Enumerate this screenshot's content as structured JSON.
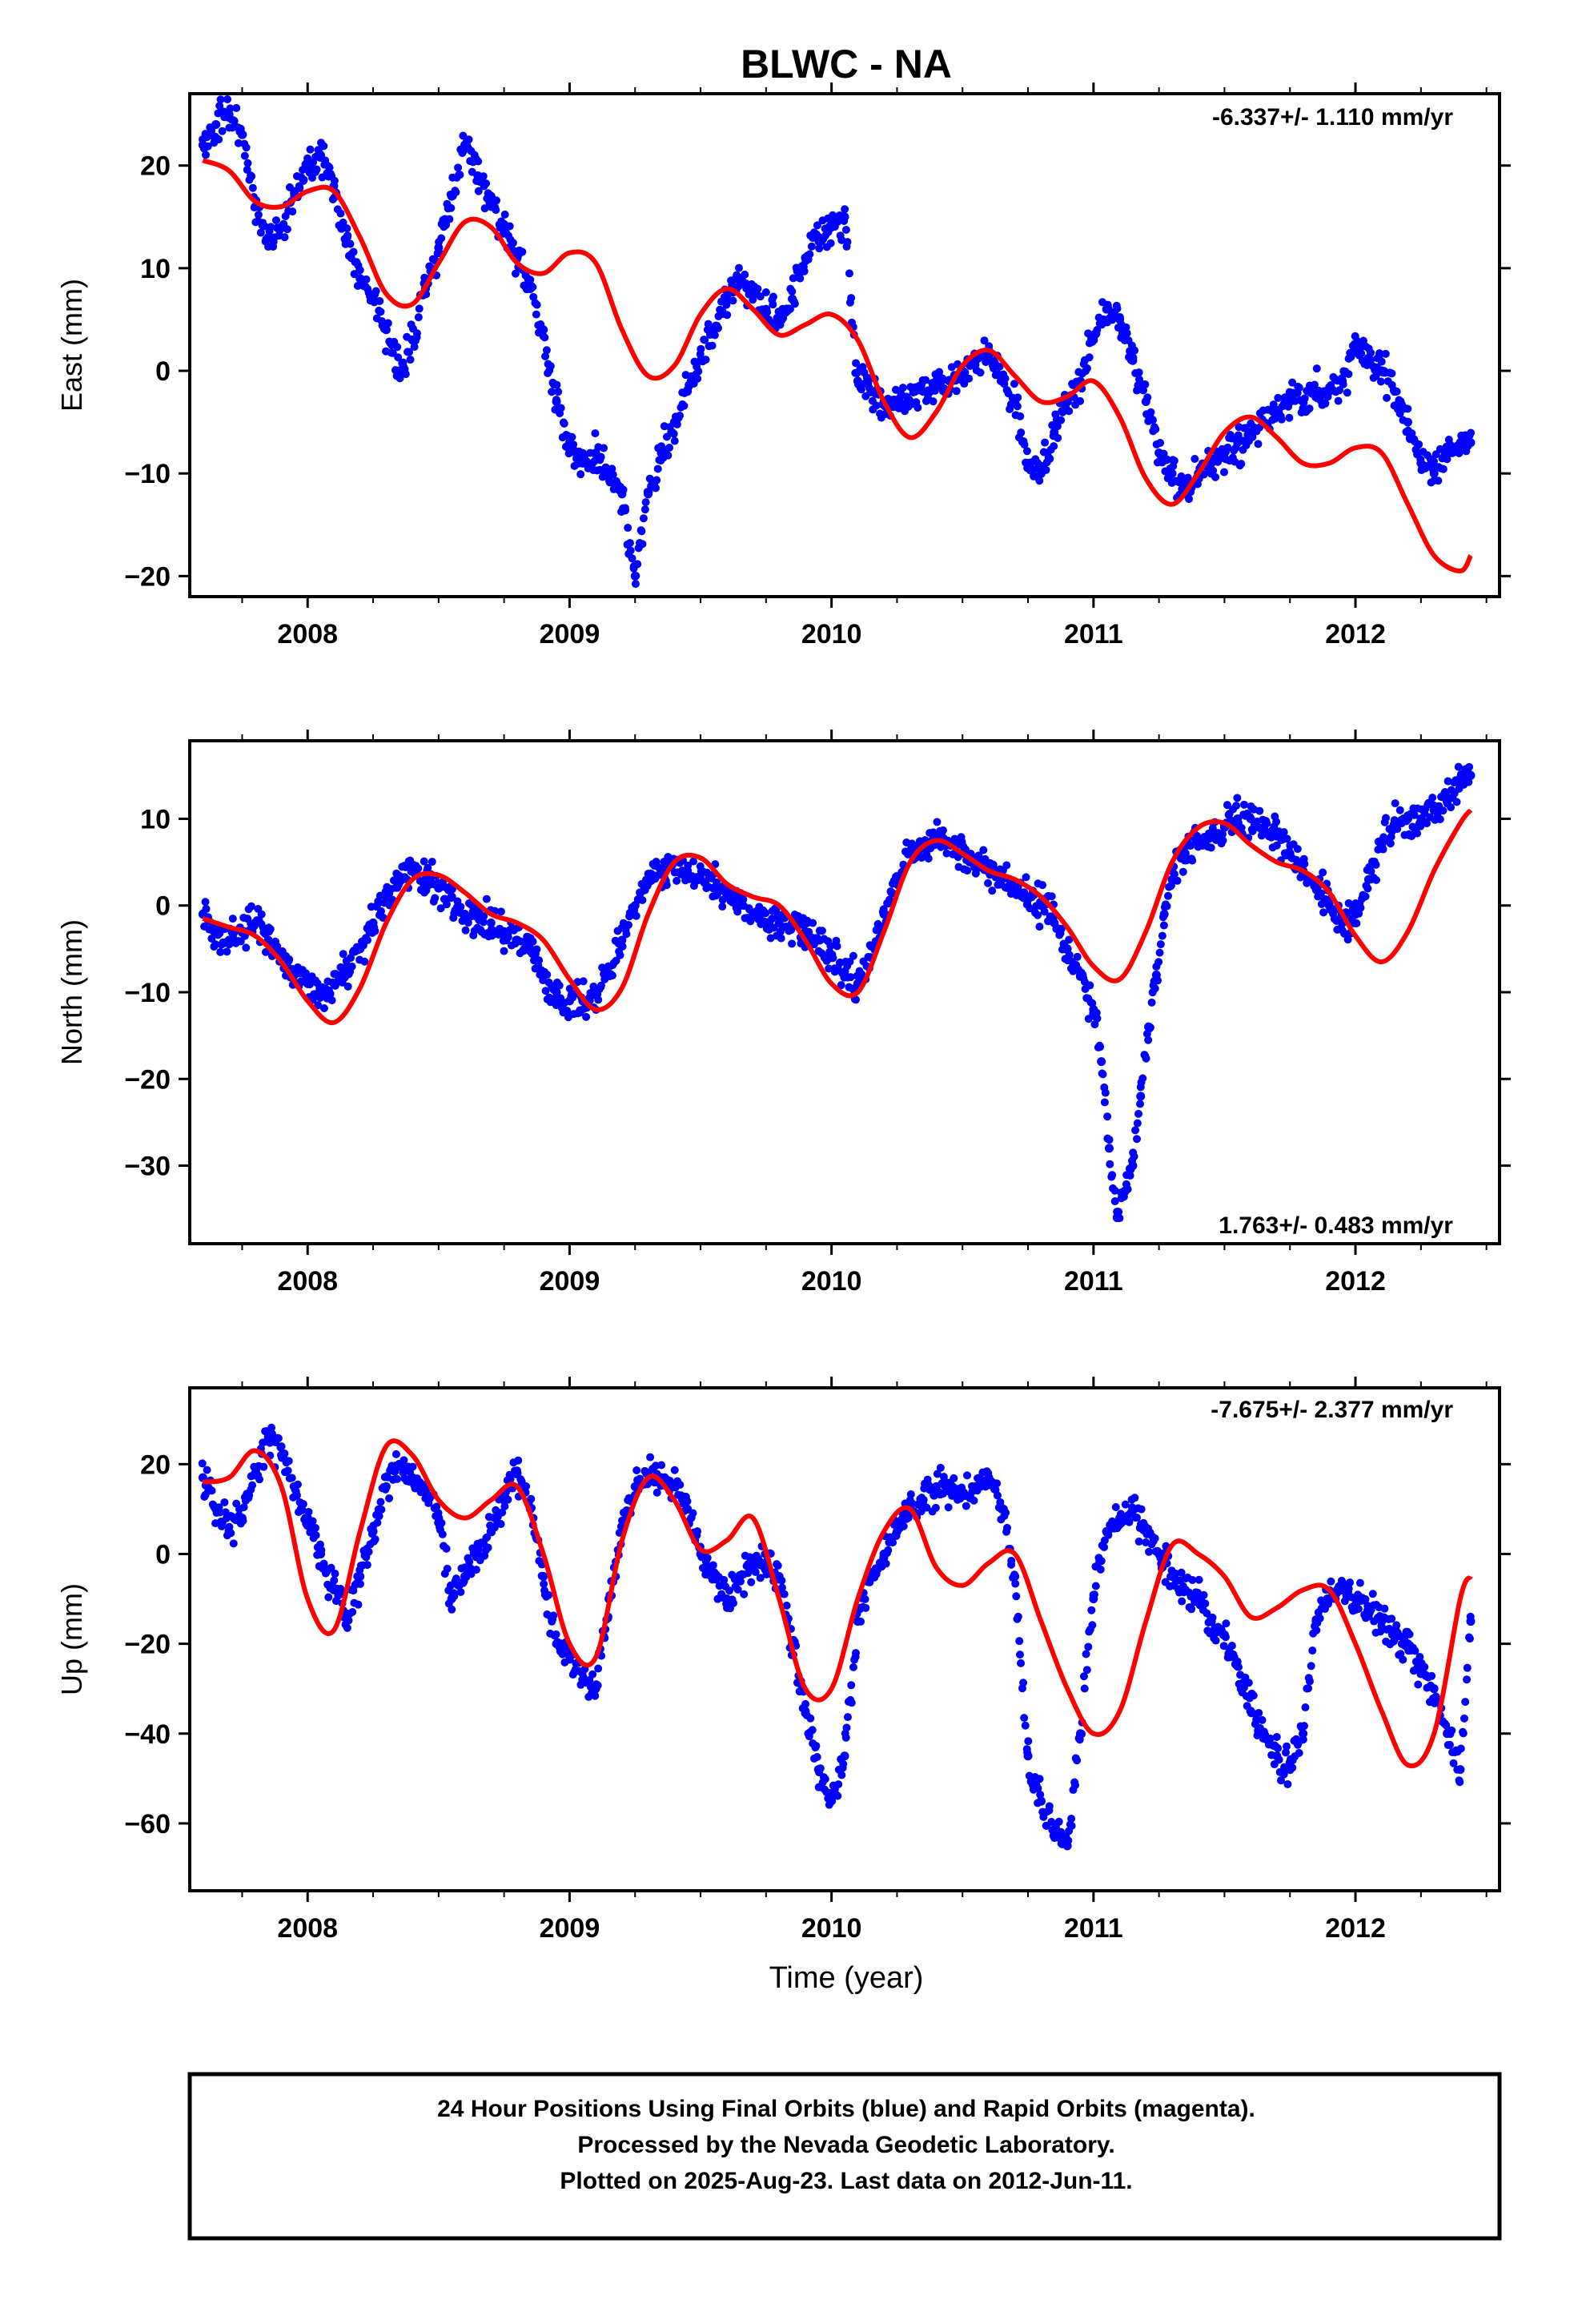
{
  "title": "BLWC - NA",
  "xlabel": "Time (year)",
  "caption": {
    "line1": "24 Hour Positions Using Final Orbits (blue) and Rapid Orbits (magenta).",
    "line2": "Processed by the Nevada Geodetic Laboratory.",
    "line3": "Plotted on 2025-Aug-23. Last data on 2012-Jun-11."
  },
  "colors": {
    "final_orbits": "#0000ff",
    "model": "#ff0000",
    "axis": "#000000"
  },
  "chart_data": [
    {
      "type": "scatter",
      "component": "east",
      "ylabel": "East (mm)",
      "rate_text": "-6.337+/- 1.110 mm/yr",
      "xlim": [
        2007.55,
        2012.55
      ],
      "ylim": [
        -22,
        27
      ],
      "xticks": [
        2008,
        2009,
        2010,
        2011,
        2012
      ],
      "yticks": [
        -20,
        -10,
        0,
        10,
        20
      ],
      "series": [
        {
          "kind": "points",
          "x": [
            2007.6,
            2007.65,
            2007.7,
            2007.75,
            2007.8,
            2007.85,
            2007.9,
            2007.95,
            2008.0,
            2008.05,
            2008.1,
            2008.15,
            2008.2,
            2008.25,
            2008.3,
            2008.35,
            2008.4,
            2008.45,
            2008.5,
            2008.55,
            2008.6,
            2008.65,
            2008.7,
            2008.75,
            2008.8,
            2008.85,
            2008.9,
            2008.95,
            2009.0,
            2009.05,
            2009.1,
            2009.15,
            2009.2,
            2009.25,
            2009.3,
            2009.35,
            2009.4,
            2009.45,
            2009.5,
            2009.55,
            2009.6,
            2009.65,
            2009.7,
            2009.75,
            2009.8,
            2009.85,
            2009.9,
            2009.95,
            2010.0,
            2010.05,
            2010.1,
            2010.15,
            2010.2,
            2010.25,
            2010.3,
            2010.35,
            2010.4,
            2010.45,
            2010.5,
            2010.55,
            2010.6,
            2010.65,
            2010.7,
            2010.75,
            2010.8,
            2010.85,
            2010.9,
            2010.95,
            2011.0,
            2011.05,
            2011.1,
            2011.15,
            2011.2,
            2011.25,
            2011.3,
            2011.35,
            2011.4,
            2011.45,
            2011.5,
            2011.55,
            2011.6,
            2011.65,
            2011.7,
            2011.75,
            2011.8,
            2011.85,
            2011.9,
            2011.95,
            2012.0,
            2012.05,
            2012.1,
            2012.15,
            2012.2,
            2012.25,
            2012.3,
            2012.35,
            2012.4,
            2012.44
          ],
          "y": [
            22,
            24,
            25,
            23,
            16,
            13,
            14,
            17,
            20,
            21,
            18,
            13,
            9,
            7,
            4,
            0,
            3,
            8,
            12,
            17,
            22,
            19,
            17,
            14,
            11,
            8,
            4,
            -3,
            -7,
            -9,
            -8,
            -10,
            -12,
            -20,
            -12,
            -8,
            -5,
            -2,
            1,
            4,
            7,
            9,
            8,
            6,
            5,
            7,
            11,
            13,
            14,
            15,
            -1,
            -2,
            -3,
            -3,
            -3,
            -2,
            -1,
            -1,
            0,
            1,
            2,
            -1,
            -3,
            -9,
            -10,
            -6,
            -3,
            -1,
            3,
            6,
            5,
            1,
            -3,
            -8,
            -10,
            -12,
            -10,
            -9,
            -8,
            -7,
            -6,
            -5,
            -4,
            -3,
            -3,
            -2,
            -2,
            -1,
            2,
            1,
            0,
            -2,
            -5,
            -9,
            -10,
            -8,
            -7,
            -7
          ]
        },
        {
          "kind": "model",
          "x": [
            2007.6,
            2007.7,
            2007.8,
            2007.9,
            2008.0,
            2008.1,
            2008.2,
            2008.3,
            2008.4,
            2008.5,
            2008.6,
            2008.7,
            2008.8,
            2008.9,
            2009.0,
            2009.1,
            2009.2,
            2009.3,
            2009.4,
            2009.5,
            2009.6,
            2009.7,
            2009.8,
            2009.9,
            2010.0,
            2010.1,
            2010.2,
            2010.3,
            2010.4,
            2010.5,
            2010.6,
            2010.7,
            2010.8,
            2010.9,
            2011.0,
            2011.1,
            2011.2,
            2011.3,
            2011.4,
            2011.5,
            2011.6,
            2011.7,
            2011.8,
            2011.9,
            2012.0,
            2012.1,
            2012.2,
            2012.3,
            2012.4,
            2012.44
          ],
          "y": [
            20.5,
            19.5,
            16.5,
            16,
            17.5,
            17.5,
            13,
            7.5,
            6.5,
            10.5,
            14.5,
            14,
            10.5,
            9.5,
            11.5,
            10.5,
            4,
            -0.5,
            0.5,
            5.5,
            8,
            6,
            3.5,
            4.5,
            5.5,
            3,
            -3,
            -6.5,
            -4,
            0.5,
            2,
            -0.5,
            -3,
            -2.5,
            -1,
            -4.5,
            -10.5,
            -13,
            -10,
            -6,
            -4.5,
            -6.5,
            -9,
            -9,
            -7.5,
            -8,
            -13,
            -18,
            -19.5,
            -18
          ]
        }
      ]
    },
    {
      "type": "scatter",
      "component": "north",
      "ylabel": "North (mm)",
      "rate_text": "1.763+/- 0.483 mm/yr",
      "xlim": [
        2007.55,
        2012.55
      ],
      "ylim": [
        -39,
        19
      ],
      "xticks": [
        2008,
        2009,
        2010,
        2011,
        2012
      ],
      "yticks": [
        -30,
        -20,
        -10,
        0,
        10
      ],
      "series": [
        {
          "kind": "points",
          "x": [
            2007.6,
            2007.65,
            2007.7,
            2007.75,
            2007.8,
            2007.85,
            2007.9,
            2007.95,
            2008.0,
            2008.05,
            2008.1,
            2008.15,
            2008.2,
            2008.25,
            2008.3,
            2008.35,
            2008.4,
            2008.45,
            2008.5,
            2008.55,
            2008.6,
            2008.65,
            2008.7,
            2008.75,
            2008.8,
            2008.85,
            2008.9,
            2008.95,
            2009.0,
            2009.05,
            2009.1,
            2009.15,
            2009.2,
            2009.25,
            2009.3,
            2009.35,
            2009.4,
            2009.45,
            2009.5,
            2009.55,
            2009.6,
            2009.65,
            2009.7,
            2009.75,
            2009.8,
            2009.85,
            2009.9,
            2009.95,
            2010.0,
            2010.05,
            2010.1,
            2010.15,
            2010.2,
            2010.25,
            2010.3,
            2010.35,
            2010.4,
            2010.45,
            2010.5,
            2010.55,
            2010.6,
            2010.65,
            2010.7,
            2010.75,
            2010.8,
            2010.85,
            2010.9,
            2010.95,
            2011.0,
            2011.03,
            2011.06,
            2011.09,
            2011.12,
            2011.15,
            2011.18,
            2011.21,
            2011.24,
            2011.27,
            2011.3,
            2011.35,
            2011.4,
            2011.45,
            2011.5,
            2011.55,
            2011.6,
            2011.65,
            2011.7,
            2011.75,
            2011.8,
            2011.85,
            2011.9,
            2011.95,
            2012.0,
            2012.05,
            2012.1,
            2012.15,
            2012.2,
            2012.25,
            2012.3,
            2012.35,
            2012.4,
            2012.44
          ],
          "y": [
            -1,
            -3,
            -4,
            -3,
            -2,
            -4,
            -6,
            -8,
            -9,
            -10,
            -9,
            -7,
            -5,
            -2,
            1,
            3,
            4,
            3,
            2,
            1,
            -1,
            -1,
            -2,
            -3,
            -4,
            -5,
            -8,
            -10,
            -11,
            -11,
            -10,
            -8,
            -4,
            0,
            3,
            4,
            5,
            4,
            3,
            2,
            1,
            0,
            -1,
            -2,
            -2,
            -2,
            -3,
            -4,
            -6,
            -8,
            -9,
            -6,
            -1,
            3,
            6,
            7,
            8,
            7,
            6,
            5,
            4,
            3,
            2,
            1,
            0,
            -2,
            -5,
            -8,
            -12,
            -18,
            -28,
            -36,
            -33,
            -30,
            -22,
            -14,
            -8,
            -1,
            3,
            6,
            7,
            8,
            9,
            10,
            10,
            9,
            8,
            6,
            4,
            2,
            0,
            -2,
            -1,
            3,
            7,
            9,
            10,
            10,
            11,
            12,
            14,
            15
          ]
        },
        {
          "kind": "model",
          "x": [
            2007.6,
            2007.7,
            2007.8,
            2007.9,
            2008.0,
            2008.1,
            2008.2,
            2008.3,
            2008.4,
            2008.5,
            2008.6,
            2008.7,
            2008.8,
            2008.9,
            2009.0,
            2009.1,
            2009.2,
            2009.3,
            2009.4,
            2009.5,
            2009.6,
            2009.7,
            2009.8,
            2009.9,
            2010.0,
            2010.1,
            2010.2,
            2010.3,
            2010.4,
            2010.5,
            2010.6,
            2010.7,
            2010.8,
            2010.9,
            2011.0,
            2011.1,
            2011.2,
            2011.3,
            2011.4,
            2011.5,
            2011.6,
            2011.7,
            2011.8,
            2011.9,
            2012.0,
            2012.1,
            2012.2,
            2012.3,
            2012.4,
            2012.44
          ],
          "y": [
            -1.5,
            -2.5,
            -3.5,
            -6.5,
            -11,
            -13.5,
            -9.5,
            -2,
            3,
            3.5,
            1.5,
            -1,
            -2,
            -4,
            -8.5,
            -12,
            -9.5,
            -1,
            5,
            5.5,
            2.5,
            1,
            0,
            -4,
            -9,
            -10,
            -3,
            5,
            7.5,
            6,
            4,
            3,
            1,
            -2.5,
            -7,
            -8.5,
            -3,
            5,
            9,
            9.5,
            7,
            5,
            4,
            1.5,
            -3.5,
            -6.5,
            -3,
            4,
            9.5,
            11
          ]
        }
      ]
    },
    {
      "type": "scatter",
      "component": "up",
      "ylabel": "Up (mm)",
      "rate_text": "-7.675+/- 2.377 mm/yr",
      "xlim": [
        2007.55,
        2012.55
      ],
      "ylim": [
        -75,
        37
      ],
      "xticks": [
        2008,
        2009,
        2010,
        2011,
        2012
      ],
      "yticks": [
        -60,
        -40,
        -20,
        0,
        20
      ],
      "series": [
        {
          "kind": "points",
          "x": [
            2007.6,
            2007.65,
            2007.7,
            2007.75,
            2007.8,
            2007.85,
            2007.9,
            2007.95,
            2008.0,
            2008.05,
            2008.1,
            2008.15,
            2008.2,
            2008.25,
            2008.3,
            2008.35,
            2008.4,
            2008.45,
            2008.5,
            2008.55,
            2008.6,
            2008.65,
            2008.7,
            2008.75,
            2008.8,
            2008.85,
            2008.9,
            2008.95,
            2009.0,
            2009.05,
            2009.1,
            2009.15,
            2009.2,
            2009.25,
            2009.3,
            2009.35,
            2009.4,
            2009.45,
            2009.5,
            2009.55,
            2009.6,
            2009.65,
            2009.7,
            2009.75,
            2009.8,
            2009.85,
            2009.9,
            2009.95,
            2010.0,
            2010.05,
            2010.1,
            2010.15,
            2010.2,
            2010.25,
            2010.3,
            2010.35,
            2010.4,
            2010.45,
            2010.5,
            2010.55,
            2010.6,
            2010.65,
            2010.7,
            2010.75,
            2010.8,
            2010.85,
            2010.9,
            2010.95,
            2011.0,
            2011.05,
            2011.1,
            2011.15,
            2011.2,
            2011.25,
            2011.3,
            2011.35,
            2011.4,
            2011.45,
            2011.5,
            2011.55,
            2011.6,
            2011.65,
            2011.7,
            2011.75,
            2011.8,
            2011.85,
            2011.9,
            2011.95,
            2012.0,
            2012.05,
            2012.1,
            2012.15,
            2012.2,
            2012.25,
            2012.3,
            2012.35,
            2012.4,
            2012.44
          ],
          "y": [
            17,
            10,
            5,
            8,
            18,
            26,
            22,
            15,
            8,
            0,
            -8,
            -14,
            -5,
            5,
            15,
            20,
            17,
            14,
            8,
            -10,
            -5,
            0,
            5,
            12,
            18,
            10,
            -5,
            -20,
            -22,
            -28,
            -30,
            -10,
            5,
            15,
            18,
            17,
            15,
            10,
            0,
            -5,
            -10,
            -5,
            -3,
            -2,
            -5,
            -20,
            -35,
            -48,
            -55,
            -45,
            -15,
            -5,
            0,
            5,
            10,
            12,
            15,
            14,
            13,
            15,
            17,
            10,
            -5,
            -45,
            -55,
            -62,
            -65,
            -40,
            -10,
            5,
            8,
            10,
            5,
            0,
            -5,
            -8,
            -10,
            -15,
            -18,
            -25,
            -35,
            -40,
            -45,
            -48,
            -40,
            -15,
            -10,
            -8,
            -10,
            -12,
            -15,
            -18,
            -20,
            -25,
            -30,
            -40,
            -48,
            -15
          ]
        },
        {
          "kind": "model",
          "x": [
            2007.6,
            2007.7,
            2007.8,
            2007.9,
            2008.0,
            2008.1,
            2008.2,
            2008.3,
            2008.4,
            2008.5,
            2008.6,
            2008.7,
            2008.8,
            2008.9,
            2009.0,
            2009.1,
            2009.2,
            2009.3,
            2009.4,
            2009.5,
            2009.6,
            2009.7,
            2009.8,
            2009.9,
            2010.0,
            2010.1,
            2010.2,
            2010.3,
            2010.4,
            2010.5,
            2010.6,
            2010.7,
            2010.8,
            2010.9,
            2011.0,
            2011.1,
            2011.2,
            2011.3,
            2011.4,
            2011.5,
            2011.6,
            2011.7,
            2011.8,
            2011.9,
            2012.0,
            2012.1,
            2012.2,
            2012.3,
            2012.4,
            2012.44
          ],
          "y": [
            16,
            17,
            23,
            15,
            -10,
            -17,
            5,
            24,
            22,
            12,
            8,
            12,
            15,
            0,
            -20,
            -23,
            3,
            17,
            12,
            1,
            3,
            8,
            -10,
            -30,
            -30,
            -10,
            5,
            10,
            -3,
            -7,
            -2,
            0,
            -15,
            -30,
            -40,
            -35,
            -15,
            2,
            0,
            -5,
            -14,
            -12,
            -8,
            -8,
            -20,
            -35,
            -47,
            -40,
            -10,
            -5
          ]
        }
      ]
    }
  ]
}
